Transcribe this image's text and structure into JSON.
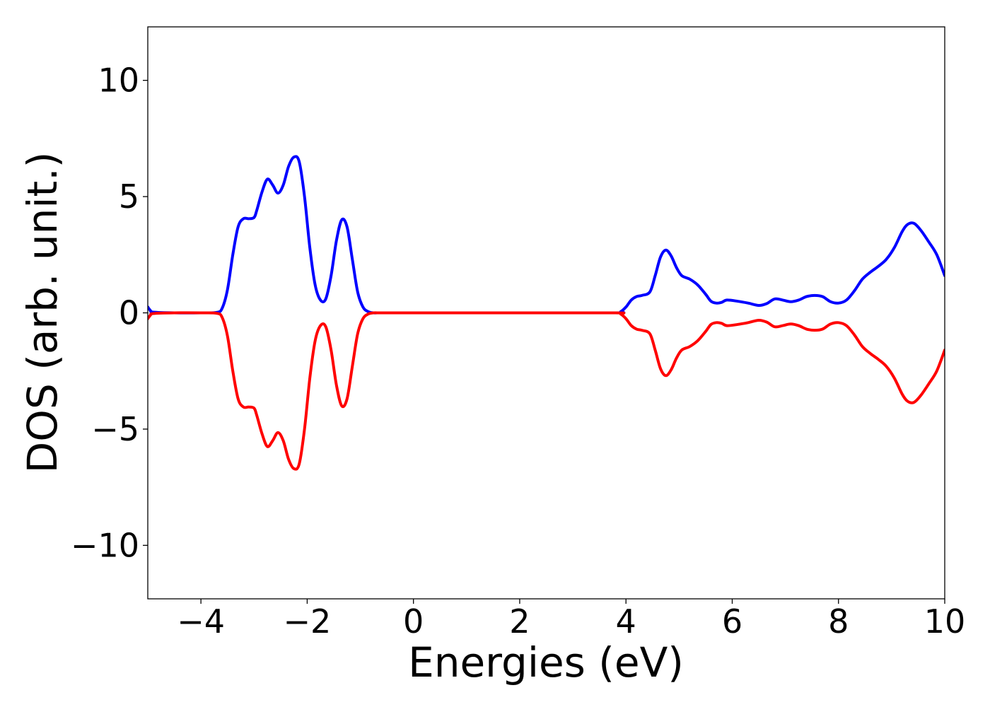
{
  "chart_data": {
    "type": "line",
    "xlabel": "Energies (eV)",
    "ylabel": "DOS (arb. unit.)",
    "xlim": [
      -5,
      10
    ],
    "ylim": [
      -12.3,
      12.3
    ],
    "xticks": [
      -4,
      -2,
      0,
      2,
      4,
      6,
      8,
      10
    ],
    "xtick_labels": [
      "−4",
      "−2",
      "0",
      "2",
      "4",
      "6",
      "8",
      "10"
    ],
    "yticks": [
      10,
      5,
      0,
      -5,
      -10
    ],
    "ytick_labels": [
      "10",
      "5",
      "0",
      "−5",
      "−10"
    ],
    "grid": false,
    "series": [
      {
        "color": "#0000ff",
        "x": [
          -5.0,
          -4.95,
          -4.9,
          -4.5,
          -4.0,
          -3.7,
          -3.6,
          -3.5,
          -3.4,
          -3.3,
          -3.2,
          -3.1,
          -3.0,
          -2.95,
          -2.85,
          -2.75,
          -2.65,
          -2.55,
          -2.45,
          -2.35,
          -2.25,
          -2.15,
          -2.05,
          -1.95,
          -1.85,
          -1.75,
          -1.65,
          -1.55,
          -1.45,
          -1.35,
          -1.25,
          -1.15,
          -1.05,
          -0.95,
          -0.85,
          -0.75,
          -0.65,
          -0.55,
          -0.45,
          0.0,
          2.0,
          3.8,
          3.9,
          4.0,
          4.1,
          4.2,
          4.3,
          4.45,
          4.55,
          4.65,
          4.75,
          4.85,
          4.95,
          5.05,
          5.2,
          5.35,
          5.5,
          5.6,
          5.7,
          5.8,
          5.9,
          6.1,
          6.3,
          6.5,
          6.65,
          6.8,
          6.95,
          7.1,
          7.25,
          7.4,
          7.55,
          7.7,
          7.85,
          8.0,
          8.15,
          8.3,
          8.45,
          8.6,
          8.75,
          8.9,
          9.05,
          9.2,
          9.3,
          9.42,
          9.55,
          9.7,
          9.85,
          10.0
        ],
        "y": [
          0.25,
          0.1,
          0.03,
          0.0,
          0.0,
          0.02,
          0.2,
          1.0,
          2.5,
          3.7,
          4.05,
          4.05,
          4.1,
          4.4,
          5.2,
          5.75,
          5.5,
          5.15,
          5.5,
          6.3,
          6.7,
          6.5,
          5.0,
          2.8,
          1.2,
          0.55,
          0.6,
          1.6,
          3.1,
          4.0,
          3.7,
          2.3,
          0.9,
          0.25,
          0.05,
          0.0,
          0.0,
          0.0,
          0.0,
          0.0,
          0.0,
          0.0,
          0.05,
          0.25,
          0.55,
          0.7,
          0.75,
          0.9,
          1.6,
          2.4,
          2.7,
          2.45,
          1.95,
          1.6,
          1.45,
          1.2,
          0.8,
          0.5,
          0.42,
          0.45,
          0.55,
          0.5,
          0.42,
          0.32,
          0.4,
          0.6,
          0.55,
          0.48,
          0.55,
          0.7,
          0.75,
          0.7,
          0.48,
          0.42,
          0.55,
          0.95,
          1.45,
          1.75,
          2.0,
          2.3,
          2.8,
          3.5,
          3.8,
          3.85,
          3.55,
          3.05,
          2.5,
          1.6
        ]
      },
      {
        "color": "#ff0000",
        "x": [
          -5.0,
          -4.95,
          -4.9,
          -4.5,
          -4.0,
          -3.7,
          -3.6,
          -3.5,
          -3.4,
          -3.3,
          -3.2,
          -3.1,
          -3.0,
          -2.95,
          -2.85,
          -2.75,
          -2.65,
          -2.55,
          -2.45,
          -2.35,
          -2.25,
          -2.15,
          -2.05,
          -1.95,
          -1.85,
          -1.75,
          -1.65,
          -1.55,
          -1.45,
          -1.35,
          -1.25,
          -1.15,
          -1.05,
          -0.95,
          -0.85,
          -0.75,
          -0.65,
          -0.55,
          -0.45,
          0.0,
          2.0,
          3.8,
          3.9,
          4.0,
          4.1,
          4.2,
          4.3,
          4.45,
          4.55,
          4.65,
          4.75,
          4.85,
          4.95,
          5.05,
          5.2,
          5.35,
          5.5,
          5.6,
          5.7,
          5.8,
          5.9,
          6.1,
          6.3,
          6.5,
          6.65,
          6.8,
          6.95,
          7.1,
          7.25,
          7.4,
          7.55,
          7.7,
          7.85,
          8.0,
          8.15,
          8.3,
          8.45,
          8.6,
          8.75,
          8.9,
          9.05,
          9.2,
          9.3,
          9.42,
          9.55,
          9.7,
          9.85,
          10.0
        ],
        "y": [
          -0.25,
          -0.1,
          -0.03,
          0.0,
          0.0,
          -0.02,
          -0.2,
          -1.0,
          -2.5,
          -3.7,
          -4.05,
          -4.05,
          -4.1,
          -4.4,
          -5.2,
          -5.75,
          -5.5,
          -5.15,
          -5.5,
          -6.3,
          -6.7,
          -6.5,
          -5.0,
          -2.8,
          -1.2,
          -0.55,
          -0.6,
          -1.6,
          -3.1,
          -4.0,
          -3.7,
          -2.3,
          -0.9,
          -0.25,
          -0.05,
          0.0,
          0.0,
          0.0,
          0.0,
          0.0,
          0.0,
          0.0,
          -0.05,
          -0.25,
          -0.55,
          -0.7,
          -0.75,
          -0.9,
          -1.6,
          -2.4,
          -2.7,
          -2.45,
          -1.95,
          -1.6,
          -1.45,
          -1.2,
          -0.8,
          -0.5,
          -0.42,
          -0.45,
          -0.55,
          -0.5,
          -0.42,
          -0.32,
          -0.4,
          -0.6,
          -0.55,
          -0.48,
          -0.55,
          -0.7,
          -0.75,
          -0.7,
          -0.48,
          -0.42,
          -0.55,
          -0.95,
          -1.45,
          -1.75,
          -2.0,
          -2.3,
          -2.8,
          -3.5,
          -3.8,
          -3.85,
          -3.55,
          -3.05,
          -2.5,
          -1.6
        ]
      }
    ]
  }
}
